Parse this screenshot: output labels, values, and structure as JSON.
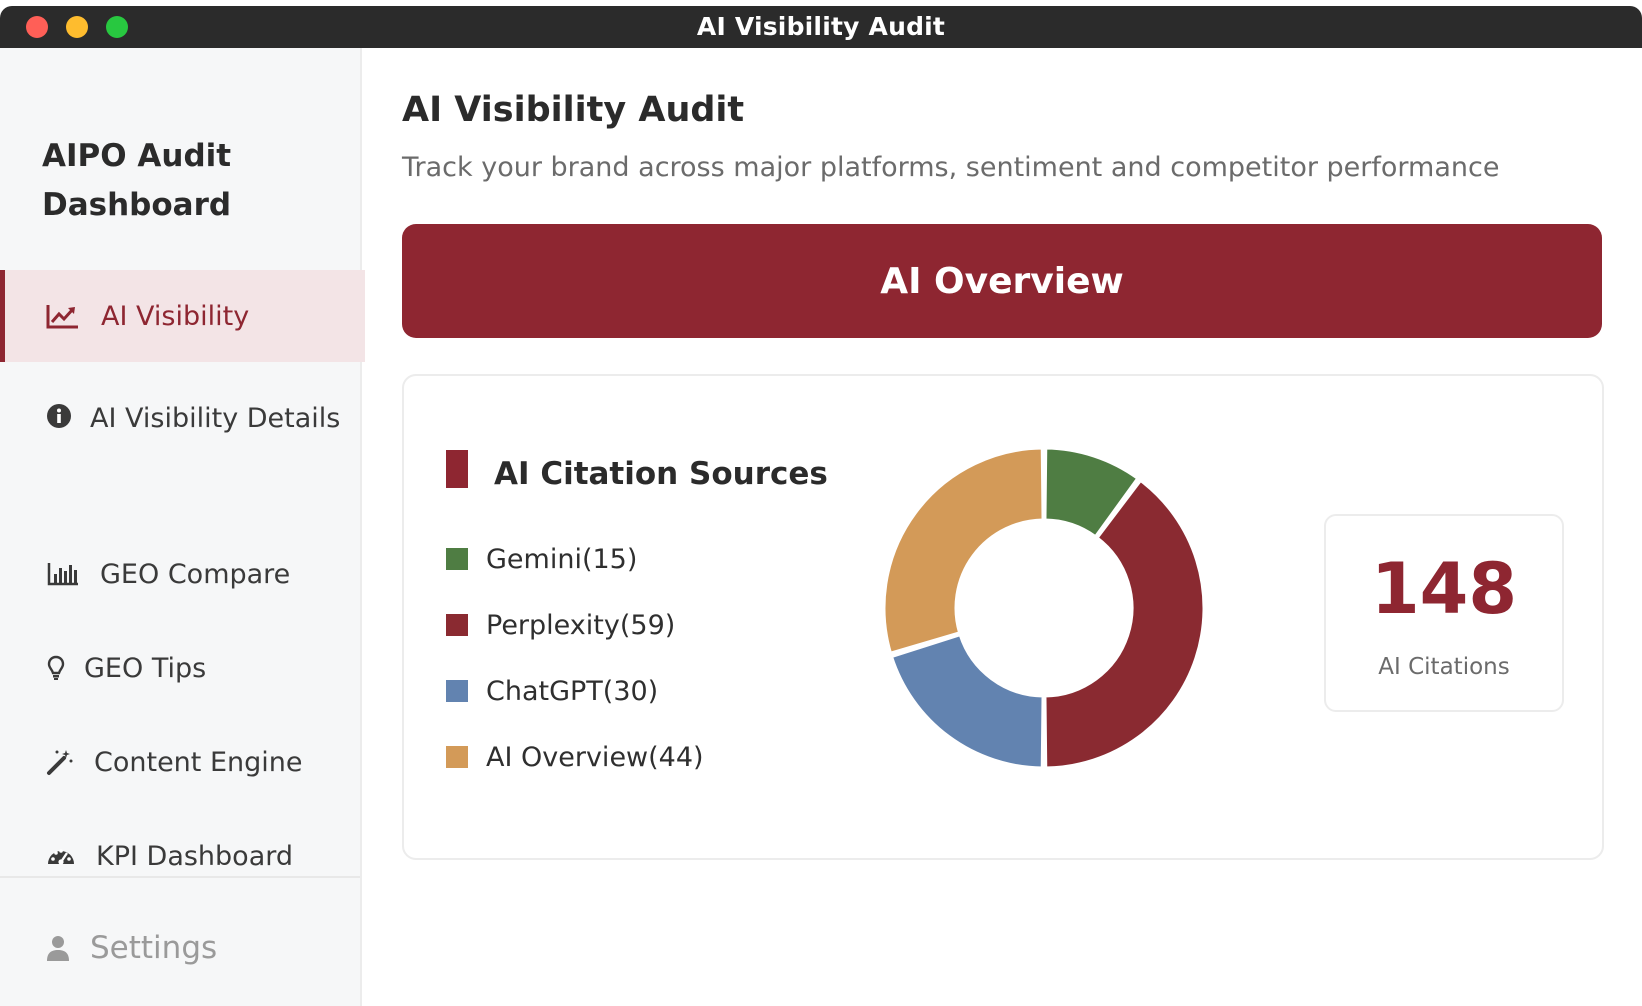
{
  "window": {
    "title": "AI Visibility Audit"
  },
  "sidebar": {
    "brand": "AIPO Audit Dashboard",
    "items": [
      {
        "label": "AI Visibility",
        "icon": "line-chart-icon",
        "active": true
      },
      {
        "label": "AI Visibility Details",
        "icon": "info-circle-icon"
      },
      {
        "label": "GEO Compare",
        "icon": "bar-chart-icon"
      },
      {
        "label": "GEO Tips",
        "icon": "lightbulb-icon"
      },
      {
        "label": "Content Engine",
        "icon": "magic-wand-icon"
      },
      {
        "label": "KPI Dashboard",
        "icon": "gauge-icon"
      }
    ],
    "settings": {
      "label": "Settings",
      "icon": "user-icon"
    }
  },
  "main": {
    "title": "AI Visibility Audit",
    "subtitle": "Track your brand across major platforms, sentiment and competitor performance",
    "overview_button": "AI Overview",
    "card": {
      "title": "AI Citation Sources",
      "legend": [
        {
          "label": "Gemini(15)"
        },
        {
          "label": "Perplexity(59)"
        },
        {
          "label": "ChatGPT(30)"
        },
        {
          "label": "AI Overview(44)"
        }
      ],
      "stat": {
        "value": "148",
        "label": "AI Citations"
      }
    }
  },
  "colors": {
    "accent": "#8e2631",
    "gemini": "#4f7d43",
    "perplexity": "#8a2a31",
    "chatgpt": "#6283b0",
    "ai_overview": "#d39a58"
  },
  "chart_data": {
    "type": "pie",
    "style": "donut",
    "title": "",
    "series": [
      {
        "name": "Gemini",
        "value": 15
      },
      {
        "name": "Perplexity",
        "value": 59
      },
      {
        "name": "ChatGPT",
        "value": 30
      },
      {
        "name": "AI Overview",
        "value": 44
      }
    ],
    "total": 148
  }
}
